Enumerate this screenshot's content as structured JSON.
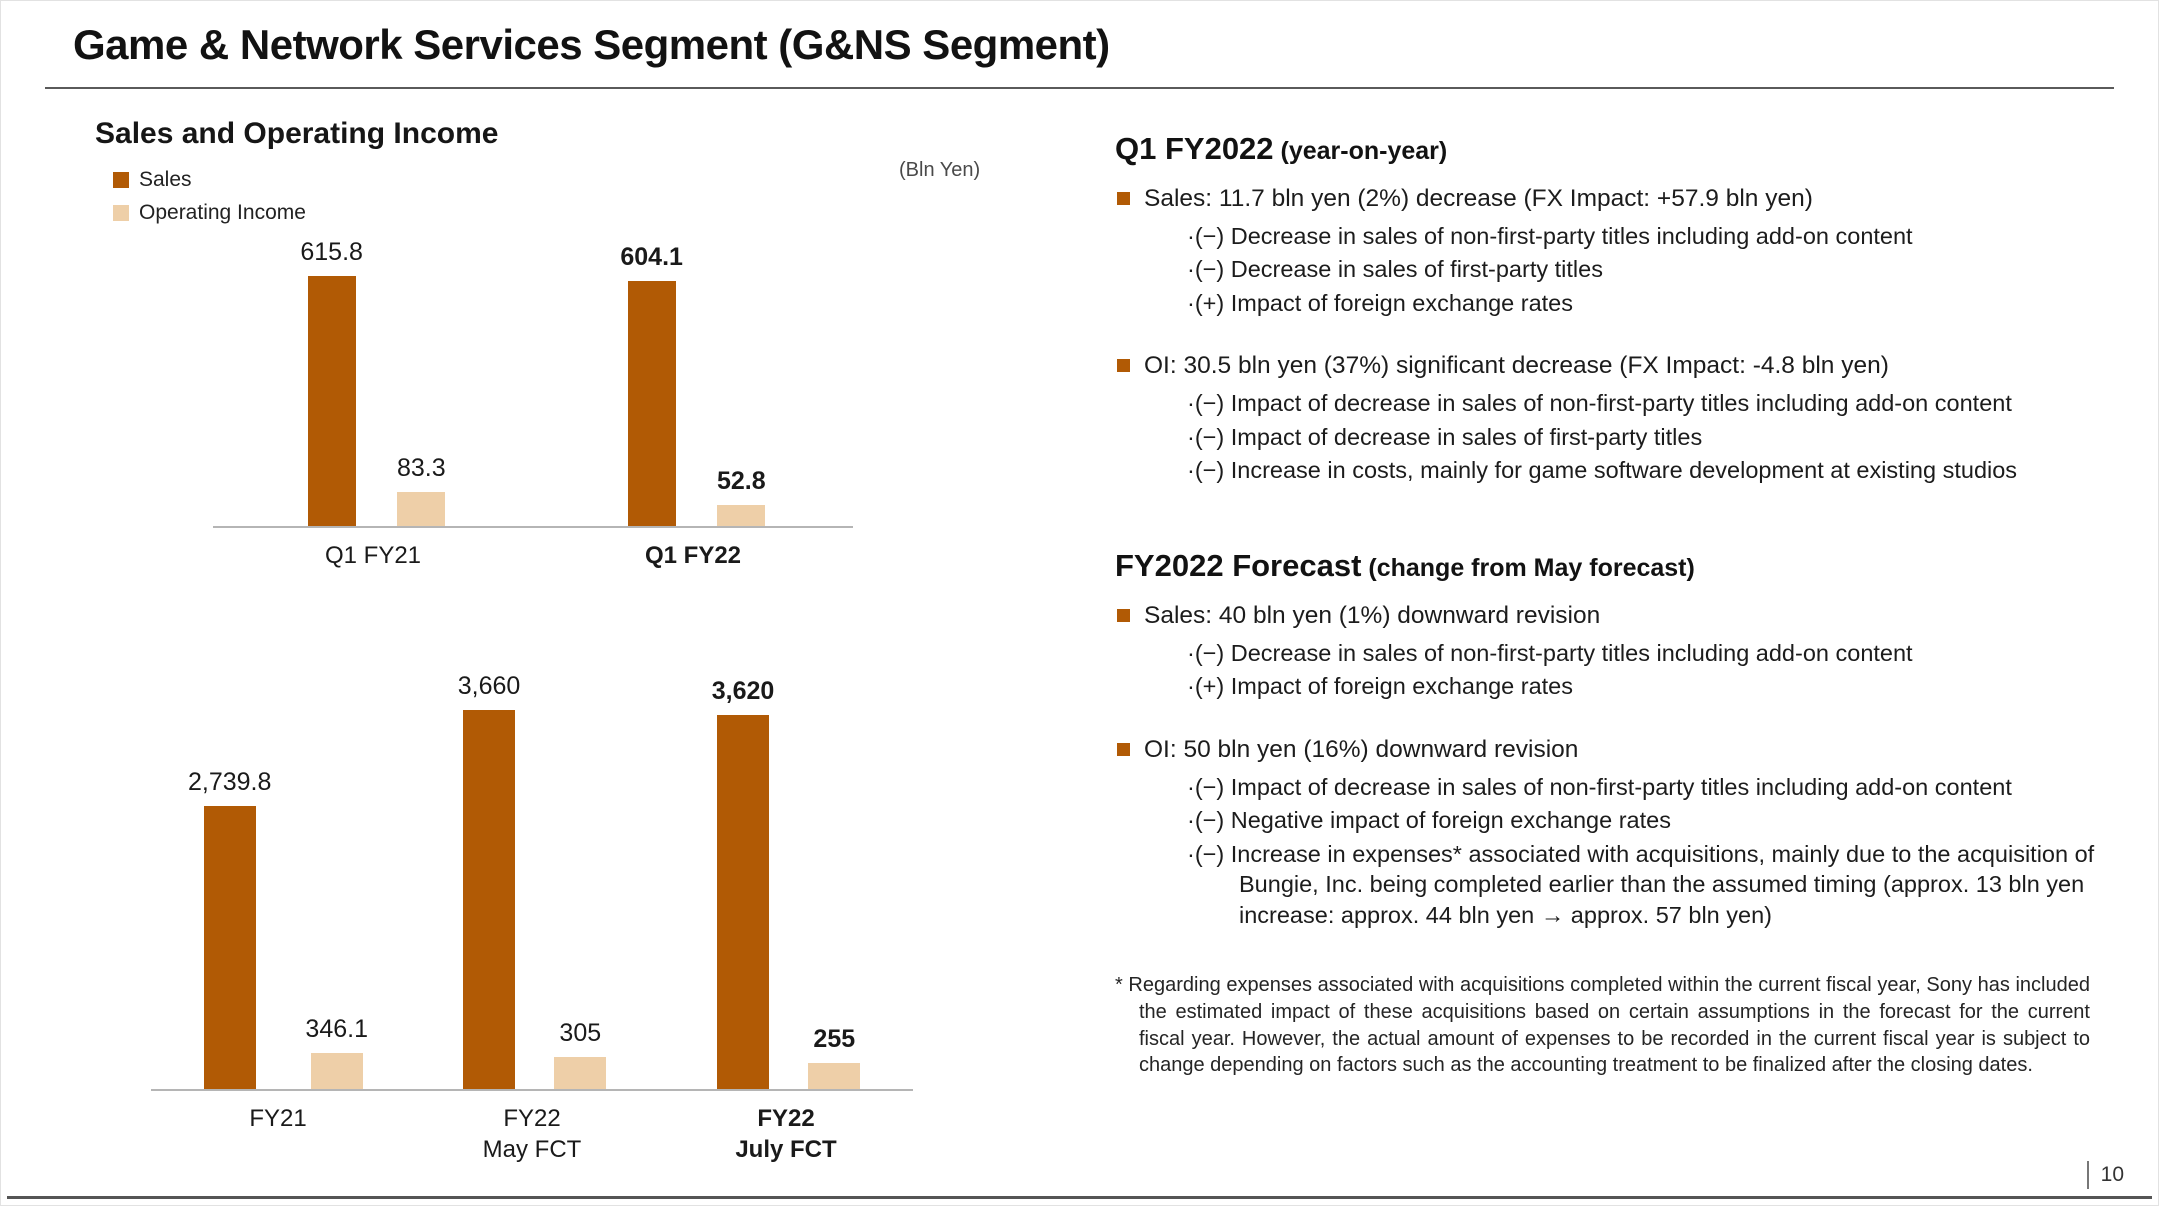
{
  "slide": {
    "title": "Game & Network Services Segment (G&NS Segment)",
    "page_number": "10"
  },
  "theme": {
    "accent": "#b15a05",
    "sales_color": "#b15a05",
    "operating_income_color": "#eecfa8"
  },
  "left": {
    "section_title": "Sales and Operating Income",
    "unit_label": "(Bln Yen)",
    "legend": [
      {
        "label": "Sales",
        "color": "#b15a05"
      },
      {
        "label": "Operating Income",
        "color": "#eecfa8"
      }
    ]
  },
  "chart_data": [
    {
      "type": "bar",
      "title": "Sales and Operating Income — Q1 year-on-year (Bln Yen)",
      "categories": [
        "Q1 FY21",
        "Q1 FY22"
      ],
      "emphasis": [
        false,
        true
      ],
      "series": [
        {
          "name": "Sales",
          "color": "#b15a05",
          "values": [
            615.8,
            604.1
          ],
          "labels": [
            "615.8",
            "604.1"
          ]
        },
        {
          "name": "Operating Income",
          "color": "#eecfa8",
          "values": [
            83.3,
            52.8
          ],
          "labels": [
            "83.3",
            "52.8"
          ]
        }
      ],
      "ylim": [
        0,
        740
      ],
      "grid": false,
      "legend_position": "top-left",
      "unit": "Bln Yen"
    },
    {
      "type": "bar",
      "title": "Sales and Operating Income — Full year and forecasts (Bln Yen)",
      "categories": [
        "FY21",
        "FY22\nMay FCT",
        "FY22\nJuly FCT"
      ],
      "emphasis": [
        false,
        false,
        true
      ],
      "series": [
        {
          "name": "Sales",
          "color": "#b15a05",
          "values": [
            2739.8,
            3660,
            3620
          ],
          "labels": [
            "2,739.8",
            "3,660",
            "3,620"
          ]
        },
        {
          "name": "Operating Income",
          "color": "#eecfa8",
          "values": [
            346.1,
            305,
            255
          ],
          "labels": [
            "346.1",
            "305",
            "255"
          ]
        }
      ],
      "ylim": [
        0,
        4380
      ],
      "grid": false,
      "legend_position": "none",
      "unit": "Bln Yen"
    }
  ],
  "right": {
    "sections": [
      {
        "title": "Q1 FY2022",
        "title_suffix": "(year-on-year)",
        "bullets": [
          {
            "text": "Sales: 11.7 bln yen (2%) decrease (FX Impact: +57.9 bln yen)",
            "subs": [
              "·(−) Decrease in sales of non-first-party titles including add-on content",
              "·(−) Decrease in sales of first-party titles",
              "·(+) Impact of foreign exchange rates"
            ]
          },
          {
            "text": "OI: 30.5 bln yen (37%) significant decrease (FX Impact: -4.8 bln yen)",
            "subs": [
              "·(−) Impact of decrease in sales of non-first-party titles including add-on content",
              "·(−) Impact of decrease in sales of first-party titles",
              "·(−) Increase in costs, mainly for game software development at existing studios"
            ]
          }
        ]
      },
      {
        "title": "FY2022 Forecast",
        "title_suffix": "(change from May forecast)",
        "bullets": [
          {
            "text": "Sales: 40 bln yen (1%) downward revision",
            "subs": [
              "·(−) Decrease in sales of non-first-party titles including add-on content",
              "·(+) Impact of foreign exchange rates"
            ]
          },
          {
            "text": "OI: 50 bln yen (16%) downward revision",
            "subs": [
              "·(−) Impact of decrease in sales of non-first-party titles including add-on content",
              "·(−) Negative impact of foreign exchange rates",
              "·(−) Increase in expenses* associated with acquisitions, mainly due to the acquisition of Bungie, Inc. being completed earlier than the assumed timing (approx. 13 bln yen increase: approx. 44 bln yen → approx. 57 bln yen)"
            ]
          }
        ]
      }
    ],
    "footnote": "* Regarding expenses associated with acquisitions completed within the current fiscal year, Sony has included the estimated impact of these acquisitions based on certain assumptions in the forecast for the current fiscal year. However, the actual amount of expenses to be recorded in the current fiscal year is subject to change depending on factors such as the accounting treatment to be finalized after the closing dates."
  }
}
